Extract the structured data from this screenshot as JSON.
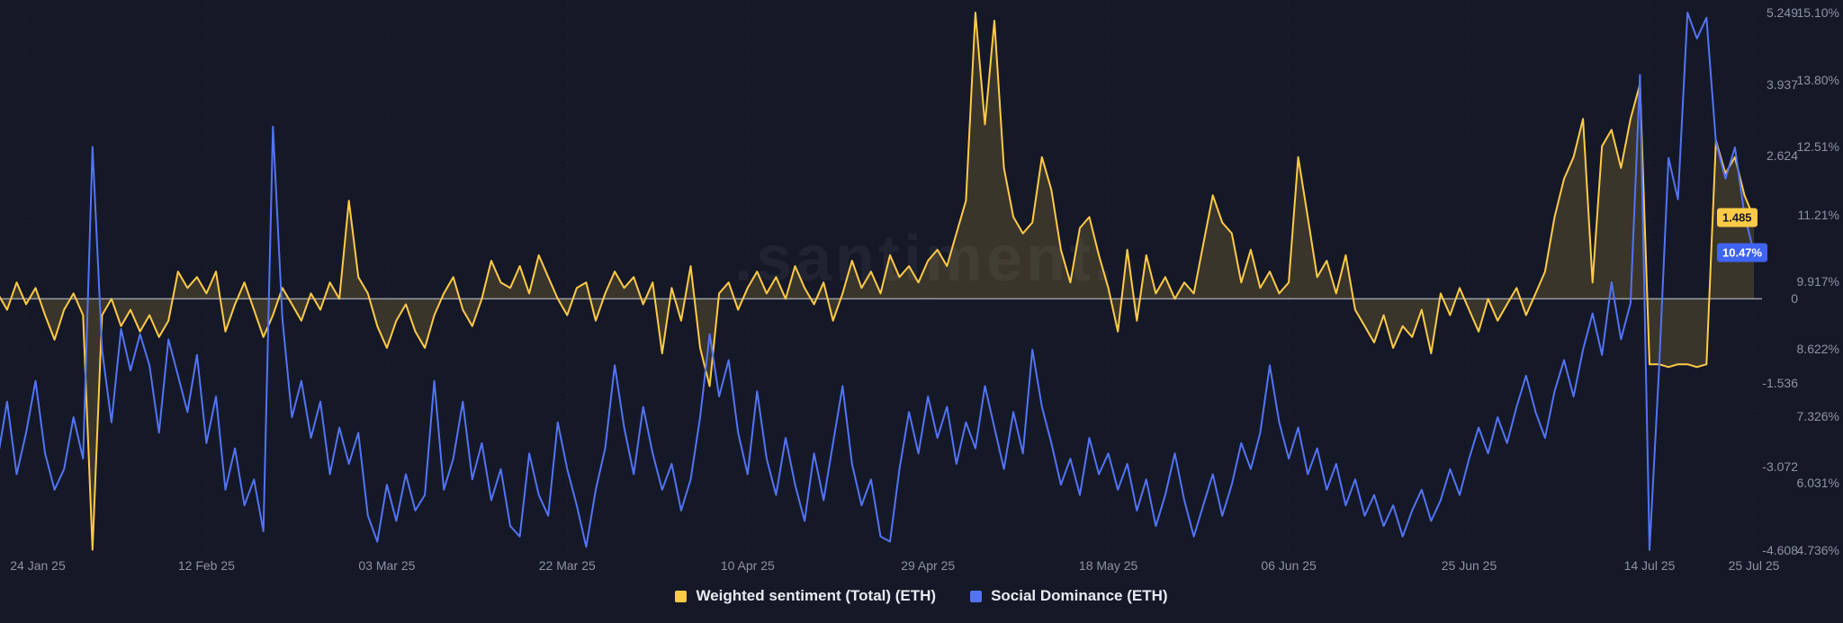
{
  "watermark": ".santiment.",
  "colors": {
    "background": "#151827",
    "sentiment": "#ffcb47",
    "sentiment_fill": "rgba(255,203,71,0.16)",
    "dominance": "#5274f5",
    "zero_line": "rgba(185,190,201,0.8)",
    "grid_line": "rgba(255,255,255,0.07)",
    "axis_text": "#8e93a2",
    "badge_sentiment_bg": "#ffcb47",
    "badge_sentiment_text": "#15182a",
    "badge_dominance_bg": "#3f63f2",
    "badge_dominance_text": "#ffffff"
  },
  "current_values": {
    "sentiment": "1.485",
    "dominance": "10.47%"
  },
  "legend": [
    {
      "label": "Weighted sentiment (Total) (ETH)",
      "color": "#ffcb47"
    },
    {
      "label": "Social Dominance (ETH)",
      "color": "#5274f5"
    }
  ],
  "chart_data": {
    "type": "line",
    "title": "",
    "x_unit": "day",
    "x_tick_labels": [
      "24 Jan 25",
      "12 Feb 25",
      "03 Mar 25",
      "22 Mar 25",
      "10 Apr 25",
      "29 Apr 25",
      "18 May 25",
      "06 Jun 25",
      "25 Jun 25",
      "14 Jul 25",
      "25 Jul 25"
    ],
    "x_tick_days": [
      0,
      19,
      38,
      57,
      76,
      95,
      114,
      133,
      152,
      171,
      182
    ],
    "x_start_day_offset": -3,
    "left_axis": {
      "label": "Weighted sentiment (Total) (ETH)",
      "range": [
        -4.608,
        5.249
      ],
      "ticks": [
        {
          "label": "5.249",
          "value": 5.249
        },
        {
          "label": "3.937",
          "value": 3.937
        },
        {
          "label": "2.624",
          "value": 2.624
        },
        {
          "label": "0",
          "value": 0
        },
        {
          "label": "-1.536",
          "value": -1.536
        },
        {
          "label": "-3.072",
          "value": -3.072
        },
        {
          "label": "-4.608",
          "value": -4.608
        }
      ]
    },
    "right_axis": {
      "label": "Social Dominance (ETH)",
      "unit": "%",
      "range": [
        4.736,
        15.1
      ],
      "ticks": [
        {
          "label": "15.10%",
          "value": 15.1
        },
        {
          "label": "13.80%",
          "value": 13.8
        },
        {
          "label": "12.51%",
          "value": 12.51
        },
        {
          "label": "11.21%",
          "value": 11.21
        },
        {
          "label": "9.917%",
          "value": 9.917
        },
        {
          "label": "8.622%",
          "value": 8.622
        },
        {
          "label": "7.326%",
          "value": 7.326
        },
        {
          "label": "6.031%",
          "value": 6.031
        },
        {
          "label": "4.736%",
          "value": 4.736
        }
      ]
    },
    "series": [
      {
        "name": "Weighted sentiment (Total) (ETH)",
        "axis": "left",
        "color": "#ffcb47",
        "fill_to_zero": true,
        "current_value": 1.485,
        "values": [
          0.1,
          -0.2,
          0.3,
          -0.1,
          0.2,
          -0.3,
          -0.75,
          -0.2,
          0.1,
          -0.3,
          -4.6,
          -0.3,
          0,
          -0.5,
          -0.2,
          -0.6,
          -0.3,
          -0.7,
          -0.4,
          0.5,
          0.2,
          0.4,
          0.1,
          0.5,
          -0.6,
          -0.1,
          0.3,
          -0.2,
          -0.7,
          -0.3,
          0.2,
          -0.1,
          -0.4,
          0.1,
          -0.2,
          0.3,
          0,
          1.8,
          0.4,
          0.1,
          -0.5,
          -0.9,
          -0.4,
          -0.1,
          -0.6,
          -0.9,
          -0.3,
          0.1,
          0.4,
          -0.2,
          -0.5,
          0,
          0.7,
          0.3,
          0.2,
          0.6,
          0.1,
          0.8,
          0.4,
          0,
          -0.3,
          0.2,
          0.3,
          -0.4,
          0.1,
          0.5,
          0.2,
          0.4,
          -0.1,
          0.3,
          -1,
          0.2,
          -0.4,
          0.6,
          -0.9,
          -1.6,
          0.1,
          0.3,
          -0.2,
          0.2,
          0.5,
          0.1,
          0.4,
          0,
          0.6,
          0.2,
          -0.1,
          0.3,
          -0.4,
          0.1,
          0.7,
          0.2,
          0.5,
          0.1,
          0.8,
          0.4,
          0.6,
          0.3,
          0.7,
          0.9,
          0.6,
          1.2,
          1.8,
          5.249,
          3.2,
          5.1,
          2.4,
          1.5,
          1.2,
          1.4,
          2.6,
          2,
          0.9,
          0.3,
          1.3,
          1.5,
          0.8,
          0.2,
          -0.6,
          0.9,
          -0.4,
          0.8,
          0.1,
          0.4,
          0,
          0.3,
          0.1,
          1,
          1.9,
          1.4,
          1.2,
          0.3,
          0.9,
          0.2,
          0.5,
          0.1,
          0.3,
          2.6,
          1.5,
          0.4,
          0.7,
          0.1,
          0.8,
          -0.2,
          -0.5,
          -0.8,
          -0.3,
          -0.9,
          -0.5,
          -0.7,
          -0.2,
          -1,
          0.1,
          -0.3,
          0.2,
          -0.2,
          -0.6,
          0,
          -0.4,
          -0.1,
          0.2,
          -0.3,
          0.1,
          0.5,
          1.5,
          2.2,
          2.6,
          3.3,
          0.3,
          2.8,
          3.1,
          2.4,
          3.3,
          3.937,
          -1.2,
          -1.2,
          -1.25,
          -1.2,
          -1.2,
          -1.25,
          -1.2,
          2.9,
          2.3,
          2.6,
          1.9,
          1.485
        ]
      },
      {
        "name": "Social Dominance (ETH)",
        "axis": "right",
        "color": "#5274f5",
        "fill_to_zero": false,
        "current_value": 10.47,
        "values": [
          6.5,
          7.6,
          6.2,
          7,
          8,
          6.6,
          5.9,
          6.3,
          7.3,
          6.5,
          12.51,
          8.6,
          7.2,
          9,
          8.2,
          8.9,
          8.3,
          7,
          8.8,
          8.1,
          7.4,
          8.5,
          6.8,
          7.7,
          5.9,
          6.7,
          5.6,
          6.1,
          5.1,
          12.9,
          9.2,
          7.3,
          8,
          6.9,
          7.6,
          6.2,
          7.1,
          6.4,
          7,
          5.4,
          4.9,
          6,
          5.3,
          6.2,
          5.5,
          5.8,
          8,
          5.9,
          6.5,
          7.6,
          6.1,
          6.8,
          5.7,
          6.3,
          5.2,
          5,
          6.6,
          5.8,
          5.4,
          7.2,
          6.3,
          5.6,
          4.8,
          5.9,
          6.7,
          8.3,
          7.1,
          6.2,
          7.5,
          6.6,
          5.9,
          6.4,
          5.5,
          6.1,
          7.3,
          8.9,
          7.7,
          8.4,
          7,
          6.2,
          7.8,
          6.5,
          5.8,
          6.9,
          6,
          5.3,
          6.6,
          5.7,
          6.8,
          7.9,
          6.4,
          5.6,
          6.1,
          5,
          4.9,
          6.3,
          7.4,
          6.6,
          7.7,
          6.9,
          7.5,
          6.4,
          7.2,
          6.7,
          7.9,
          7.1,
          6.3,
          7.4,
          6.6,
          8.6,
          7.5,
          6.8,
          6,
          6.5,
          5.8,
          6.9,
          6.2,
          6.6,
          5.9,
          6.4,
          5.5,
          6.1,
          5.2,
          5.8,
          6.6,
          5.7,
          5,
          5.6,
          6.2,
          5.4,
          6,
          6.8,
          6.3,
          7,
          8.3,
          7.2,
          6.5,
          7.1,
          6.2,
          6.7,
          5.9,
          6.4,
          5.6,
          6.1,
          5.4,
          5.8,
          5.2,
          5.6,
          5,
          5.5,
          5.9,
          5.3,
          5.7,
          6.3,
          5.8,
          6.5,
          7.1,
          6.6,
          7.3,
          6.8,
          7.5,
          8.1,
          7.4,
          6.9,
          7.8,
          8.4,
          7.7,
          8.6,
          9.3,
          8.5,
          9.9,
          8.8,
          9.5,
          13.9,
          4.74,
          8.2,
          12.3,
          11.5,
          15.1,
          14.6,
          15,
          12.6,
          11.9,
          12.5,
          11.2,
          10.47
        ]
      }
    ]
  }
}
